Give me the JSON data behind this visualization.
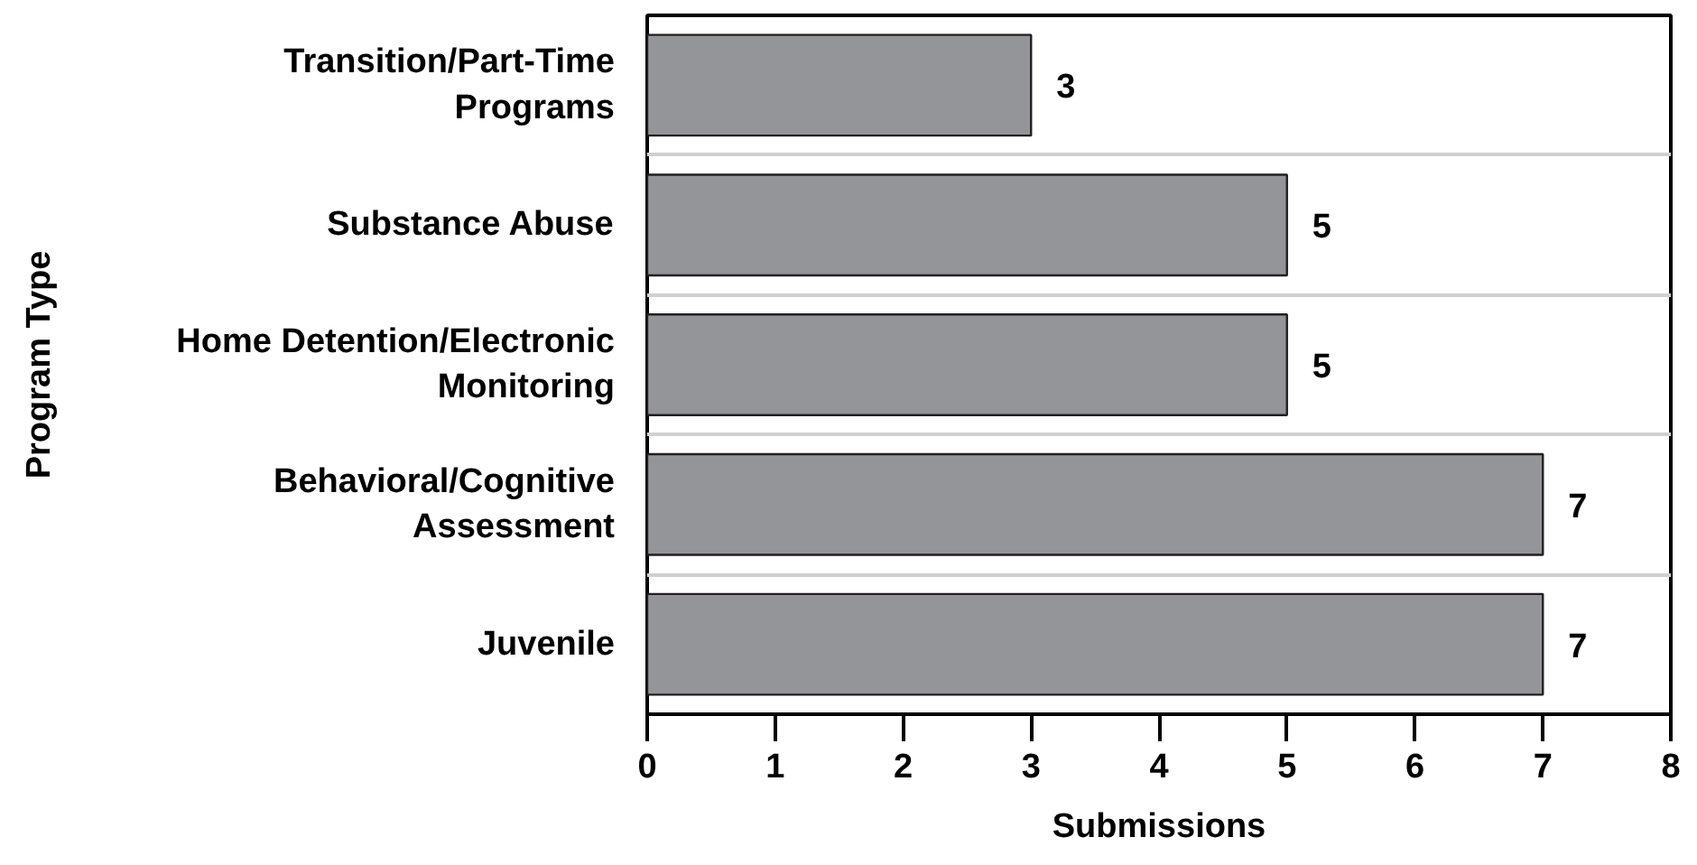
{
  "chart_data": {
    "type": "bar",
    "orientation": "horizontal",
    "categories": [
      "Transition/Part-Time Programs",
      "Substance Abuse",
      "Home Detention/Electronic Monitoring",
      "Behavioral/Cognitive Assessment",
      "Juvenile"
    ],
    "values": [
      3,
      5,
      5,
      7,
      7
    ],
    "color": "#939598",
    "xlabel": "Submissions",
    "ylabel": "Program Type",
    "xlim": [
      0,
      8
    ],
    "xticks": [
      0,
      1,
      2,
      3,
      4,
      5,
      6,
      7,
      8
    ],
    "grid": "y",
    "data_labels": true
  }
}
